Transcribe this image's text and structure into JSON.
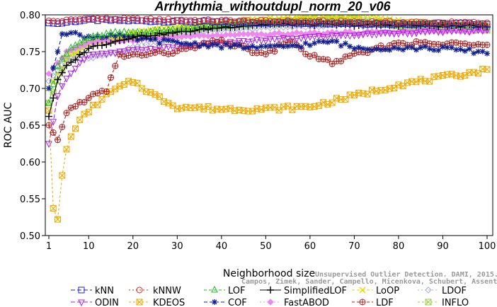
{
  "chart_data": {
    "type": "line",
    "title": "Arrhythmia_withoutdupl_norm_20_v06",
    "xlabel": "Neighborhood size",
    "ylabel": "ROC AUC",
    "xlim": [
      1,
      100
    ],
    "ylim": [
      0.5,
      0.8
    ],
    "xticks": [
      "1",
      "10",
      "20",
      "30",
      "40",
      "50",
      "60",
      "70",
      "80",
      "90",
      "100"
    ],
    "yticks": [
      "0.50",
      "0.55",
      "0.60",
      "0.65",
      "0.70",
      "0.75",
      "0.80"
    ],
    "grid": false,
    "legend_position": "bottom",
    "series": [
      {
        "name": "kNN",
        "color": "#2020cc",
        "marker": "square",
        "dash": "6,3",
        "key_x": [
          1,
          3,
          6,
          10,
          20,
          40,
          60,
          80,
          100
        ],
        "key_y": [
          0.789,
          0.788,
          0.791,
          0.793,
          0.792,
          0.79,
          0.789,
          0.788,
          0.788
        ]
      },
      {
        "name": "kNNW",
        "color": "#dd2020",
        "marker": "circle",
        "dash": "2,3",
        "key_x": [
          1,
          3,
          6,
          10,
          20,
          40,
          60,
          80,
          100
        ],
        "key_y": [
          0.792,
          0.791,
          0.793,
          0.795,
          0.794,
          0.792,
          0.791,
          0.79,
          0.789
        ]
      },
      {
        "name": "LOF",
        "color": "#22bb22",
        "marker": "triangle-up",
        "dash": "4,3",
        "key_x": [
          1,
          3,
          6,
          10,
          15,
          20,
          30,
          40,
          50,
          60,
          70,
          80,
          90,
          100
        ],
        "key_y": [
          0.68,
          0.73,
          0.755,
          0.768,
          0.775,
          0.776,
          0.78,
          0.785,
          0.788,
          0.789,
          0.788,
          0.787,
          0.786,
          0.785
        ]
      },
      {
        "name": "SimplifiedLOF",
        "color": "#000000",
        "marker": "plus",
        "dash": "",
        "key_x": [
          1,
          3,
          5,
          10,
          20,
          30,
          40,
          50,
          60,
          70,
          80,
          90,
          100
        ],
        "key_y": [
          0.662,
          0.712,
          0.73,
          0.755,
          0.77,
          0.776,
          0.783,
          0.787,
          0.787,
          0.786,
          0.786,
          0.785,
          0.785
        ]
      },
      {
        "name": "LoOP",
        "color": "#dddd00",
        "marker": "x",
        "dash": "4,3",
        "key_x": [
          1,
          5,
          10,
          20,
          30,
          40,
          50,
          60,
          70,
          72,
          80,
          90,
          100
        ],
        "key_y": [
          0.7,
          0.74,
          0.76,
          0.775,
          0.785,
          0.79,
          0.795,
          0.797,
          0.797,
          0.8,
          0.792,
          0.788,
          0.786
        ]
      },
      {
        "name": "LDOF",
        "color": "#aaaadd",
        "marker": "diamond",
        "dash": "2,3",
        "key_x": [
          1,
          5,
          10,
          20,
          30,
          40,
          60,
          80,
          100
        ],
        "key_y": [
          0.71,
          0.74,
          0.74,
          0.755,
          0.77,
          0.78,
          0.785,
          0.786,
          0.786
        ]
      },
      {
        "name": "ODIN",
        "color": "#aa22dd",
        "marker": "triangle-down",
        "dash": "6,3",
        "key_x": [
          1,
          2,
          3,
          5,
          8,
          10,
          15,
          20,
          30,
          40,
          50,
          60,
          70,
          80,
          90,
          100
        ],
        "key_y": [
          0.625,
          0.655,
          0.69,
          0.715,
          0.735,
          0.745,
          0.748,
          0.752,
          0.757,
          0.762,
          0.766,
          0.77,
          0.773,
          0.776,
          0.778,
          0.779
        ]
      },
      {
        "name": "KDEOS",
        "color": "#f0a800",
        "marker": "square-x",
        "dash": "3,3",
        "key_x": [
          1,
          2,
          3,
          4,
          5,
          7,
          10,
          15,
          20,
          25,
          30,
          40,
          50,
          60,
          70,
          80,
          90,
          100
        ],
        "key_y": [
          0.67,
          0.537,
          0.522,
          0.58,
          0.618,
          0.648,
          0.67,
          0.695,
          0.71,
          0.69,
          0.675,
          0.672,
          0.672,
          0.675,
          0.69,
          0.705,
          0.715,
          0.725
        ]
      },
      {
        "name": "COF",
        "color": "#102090",
        "marker": "asterisk",
        "dash": "5,3",
        "key_x": [
          1,
          2,
          3,
          4,
          6,
          10,
          15,
          20,
          30,
          40,
          50,
          60,
          65,
          70,
          80,
          90,
          100
        ],
        "key_y": [
          0.7,
          0.728,
          0.75,
          0.777,
          0.775,
          0.77,
          0.772,
          0.768,
          0.762,
          0.758,
          0.755,
          0.76,
          0.764,
          0.755,
          0.755,
          0.754,
          0.749
        ]
      },
      {
        "name": "FastABOD",
        "color": "#ee88ee",
        "marker": "diamond-filled",
        "dash": "2,3",
        "key_x": [
          1,
          5,
          10,
          20,
          30,
          40,
          60,
          80,
          100
        ],
        "key_y": [
          0.72,
          0.75,
          0.762,
          0.766,
          0.77,
          0.772,
          0.775,
          0.777,
          0.778
        ]
      },
      {
        "name": "LDF",
        "color": "#aa2222",
        "marker": "circle-plus",
        "dash": "4,3",
        "key_x": [
          1,
          2,
          3,
          5,
          7,
          10,
          14,
          17,
          20,
          30,
          40,
          50,
          55,
          60,
          65,
          70,
          80,
          90,
          100
        ],
        "key_y": [
          0.65,
          0.64,
          0.63,
          0.668,
          0.676,
          0.688,
          0.697,
          0.745,
          0.745,
          0.75,
          0.765,
          0.745,
          0.765,
          0.745,
          0.735,
          0.745,
          0.762,
          0.76,
          0.762
        ]
      },
      {
        "name": "INFLO",
        "color": "#99cc44",
        "marker": "square-x",
        "dash": "3,3",
        "key_x": [
          1,
          3,
          5,
          10,
          20,
          40,
          60,
          70,
          80,
          90,
          100
        ],
        "key_y": [
          0.68,
          0.71,
          0.74,
          0.765,
          0.77,
          0.785,
          0.795,
          0.795,
          0.785,
          0.78,
          0.78
        ]
      }
    ]
  },
  "watermark": "Campos, Zimek, Sander, Campello, Micenkova, Schubert, Assent, Houle",
  "watermark_line1": "Unsupervised Outlier Detection. DAMI, 2015."
}
